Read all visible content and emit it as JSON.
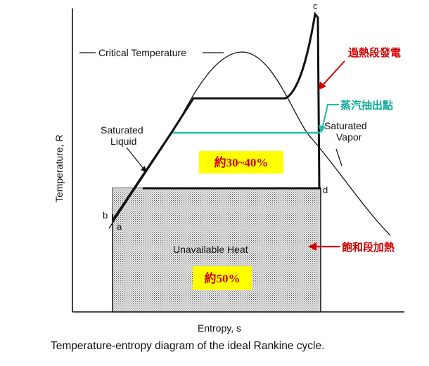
{
  "diagram": {
    "caption": "Temperature-entropy diagram of the ideal Rankine cycle.",
    "axes": {
      "x_label": "Entropy, s",
      "y_label": "Temperature, R"
    },
    "curve_labels": {
      "critical_temperature": "Critical Temperature",
      "saturated_liquid": [
        "Saturated",
        "Liquid"
      ],
      "saturated_vapor": [
        "Saturated",
        "Vapor"
      ]
    },
    "regions": {
      "unavailable_heat": "Unavailable Heat"
    },
    "points": {
      "a": "a",
      "b": "b",
      "c": "c",
      "d": "d"
    }
  },
  "annotations": {
    "superheat": {
      "text": "過熱段發電",
      "color": "#d00000"
    },
    "extraction": {
      "text": "蒸汽抽出點",
      "color": "#11aa99"
    },
    "saturation": {
      "text": "飽和段加熱",
      "color": "#d00000"
    },
    "efficiency_upper": {
      "text": "約30~40%",
      "bg": "#ffff00",
      "color": "#d00000"
    },
    "efficiency_lower": {
      "text": "約50%",
      "bg": "#ffff00",
      "color": "#d00000"
    }
  }
}
